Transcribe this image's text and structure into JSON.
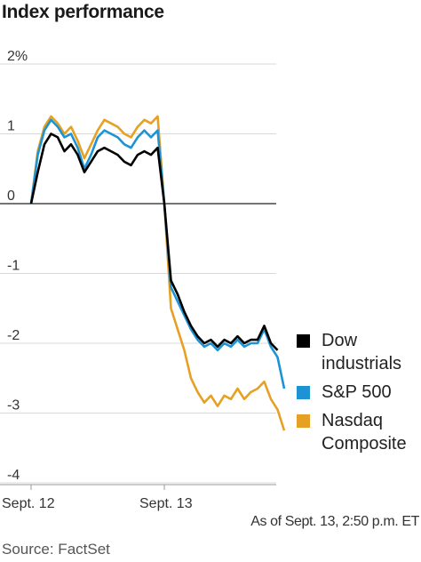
{
  "title": "Index performance",
  "note": "As of Sept. 13, 2:50 p.m. ET",
  "source": "Source: FactSet",
  "chart_data": {
    "type": "line",
    "title": "Index performance",
    "ylabel": "",
    "xlabel": "",
    "ylim": [
      -4,
      2
    ],
    "y_ticks": [
      "2%",
      "1",
      "0",
      "-1",
      "-2",
      "-3",
      "-4"
    ],
    "x_ticks": [
      "Sept. 12",
      "Sept. 13"
    ],
    "grid": true,
    "legend_position": "right",
    "x": [
      0,
      0.05,
      0.1,
      0.15,
      0.2,
      0.25,
      0.3,
      0.35,
      0.4,
      0.45,
      0.5,
      0.55,
      0.6,
      0.65,
      0.7,
      0.75,
      0.8,
      0.85,
      0.9,
      0.95,
      1.0,
      1.05,
      1.1,
      1.15,
      1.2,
      1.25,
      1.3,
      1.35,
      1.4,
      1.45,
      1.5,
      1.55,
      1.6,
      1.65,
      1.7,
      1.75,
      1.8,
      1.85,
      1.9
    ],
    "series": [
      {
        "name": "Dow industrials",
        "color": "#000000",
        "values": [
          0.0,
          0.45,
          0.85,
          1.0,
          0.95,
          0.75,
          0.85,
          0.7,
          0.45,
          0.6,
          0.75,
          0.8,
          0.75,
          0.7,
          0.6,
          0.55,
          0.7,
          0.75,
          0.7,
          0.8,
          0.0,
          -1.1,
          -1.3,
          -1.55,
          -1.75,
          -1.9,
          -2.0,
          -1.95,
          -2.05,
          -1.95,
          -2.0,
          -1.9,
          -2.0,
          -1.95,
          -1.95,
          -1.75,
          -2.0,
          -2.1,
          null
        ]
      },
      {
        "name": "S&P 500",
        "color": "#1e93d4",
        "values": [
          0.0,
          0.7,
          1.05,
          1.2,
          1.1,
          0.95,
          1.0,
          0.8,
          0.5,
          0.7,
          0.95,
          1.05,
          1.0,
          0.95,
          0.85,
          0.8,
          0.95,
          1.05,
          0.95,
          1.05,
          0.0,
          -1.2,
          -1.4,
          -1.6,
          -1.8,
          -1.95,
          -2.05,
          -2.0,
          -2.1,
          -2.0,
          -2.05,
          -1.95,
          -2.05,
          -2.0,
          -2.0,
          -1.8,
          -2.05,
          -2.2,
          -2.65
        ]
      },
      {
        "name": "Nasdaq Composite",
        "color": "#e6a023",
        "values": [
          0.0,
          0.75,
          1.1,
          1.25,
          1.15,
          1.0,
          1.1,
          0.9,
          0.65,
          0.85,
          1.05,
          1.2,
          1.15,
          1.1,
          1.0,
          0.95,
          1.1,
          1.2,
          1.15,
          1.25,
          0.0,
          -1.5,
          -1.8,
          -2.1,
          -2.5,
          -2.7,
          -2.85,
          -2.75,
          -2.9,
          -2.75,
          -2.8,
          -2.65,
          -2.8,
          -2.7,
          -2.65,
          -2.55,
          -2.8,
          -2.95,
          -3.25
        ]
      }
    ]
  }
}
